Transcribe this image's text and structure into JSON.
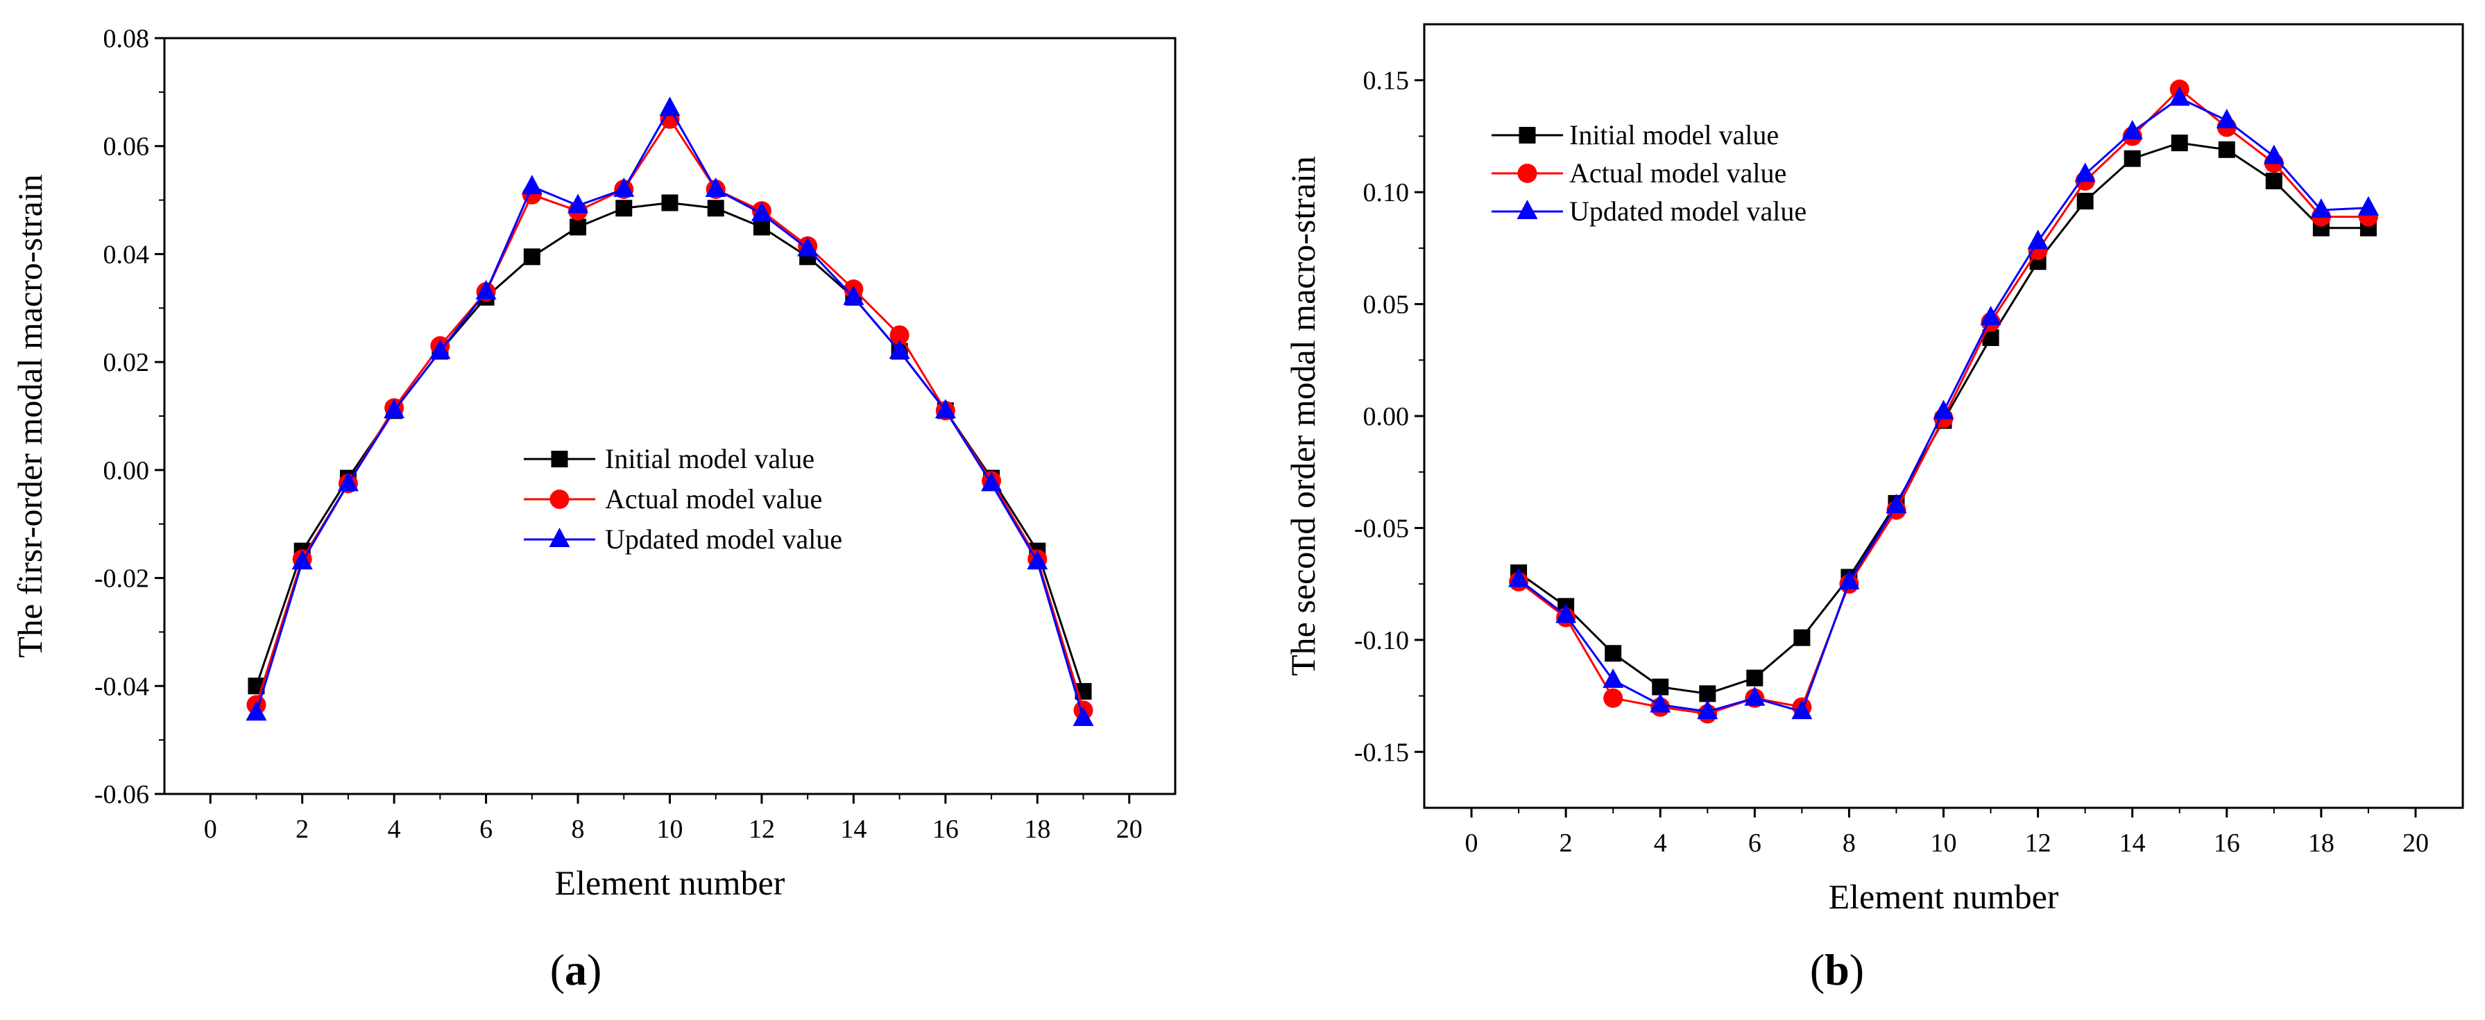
{
  "chart_data": [
    {
      "type": "line",
      "panel": "a",
      "caption": {
        "open": "(",
        "letter": "a",
        "close": ")"
      },
      "title": "",
      "xlabel": "Element number",
      "ylabel": "The firsr-order modal macro-strain",
      "xlim": [
        -1,
        21
      ],
      "ylim": [
        -0.06,
        0.08
      ],
      "xticks": [
        0,
        2,
        4,
        6,
        8,
        10,
        12,
        14,
        16,
        18,
        20
      ],
      "xtick_labels": [
        "0",
        "2",
        "4",
        "6",
        "8",
        "10",
        "12",
        "14",
        "16",
        "18",
        "20"
      ],
      "yticks": [
        -0.06,
        -0.04,
        -0.02,
        0.0,
        0.02,
        0.04,
        0.06,
        0.08
      ],
      "ytick_labels": [
        "-0.06",
        "-0.04",
        "-0.02",
        "0.00",
        "0.02",
        "0.04",
        "0.06",
        "0.08"
      ],
      "legend_position": "center-right",
      "x": [
        1,
        2,
        3,
        4,
        5,
        6,
        7,
        8,
        9,
        10,
        11,
        12,
        13,
        14,
        15,
        16,
        17,
        18,
        19
      ],
      "series": [
        {
          "name": "Initial model value",
          "color": "#000000",
          "marker": "square",
          "values": [
            -0.04,
            -0.015,
            -0.0015,
            0.011,
            0.022,
            0.032,
            0.0395,
            0.045,
            0.0485,
            0.0495,
            0.0485,
            0.045,
            0.0395,
            0.032,
            0.022,
            0.011,
            -0.0015,
            -0.015,
            -0.041
          ]
        },
        {
          "name": "Actual model value",
          "color": "#ff0000",
          "marker": "circle",
          "values": [
            -0.0435,
            -0.0165,
            -0.0025,
            0.0115,
            0.023,
            0.033,
            0.051,
            0.048,
            0.052,
            0.065,
            0.052,
            0.048,
            0.0415,
            0.0335,
            0.025,
            0.011,
            -0.002,
            -0.0165,
            -0.0445
          ]
        },
        {
          "name": "Updated model value",
          "color": "#0000ff",
          "marker": "triangle",
          "values": [
            -0.045,
            -0.017,
            -0.0025,
            0.011,
            0.022,
            0.033,
            0.0525,
            0.049,
            0.052,
            0.067,
            0.052,
            0.0475,
            0.041,
            0.032,
            0.022,
            0.011,
            -0.0025,
            -0.017,
            -0.046
          ]
        }
      ]
    },
    {
      "type": "line",
      "panel": "b",
      "caption": {
        "open": "(",
        "letter": "b",
        "close": ")"
      },
      "title": "",
      "xlabel": "Element number",
      "ylabel": "The second order modal macro-strain",
      "xlim": [
        -1,
        21
      ],
      "ylim": [
        -0.175,
        0.175
      ],
      "xticks": [
        0,
        2,
        4,
        6,
        8,
        10,
        12,
        14,
        16,
        18,
        20
      ],
      "xtick_labels": [
        "0",
        "2",
        "4",
        "6",
        "8",
        "10",
        "12",
        "14",
        "16",
        "18",
        "20"
      ],
      "yticks": [
        -0.15,
        -0.1,
        -0.05,
        0.0,
        0.05,
        0.1,
        0.15
      ],
      "ytick_labels": [
        "-0.15",
        "-0.10",
        "-0.05",
        "0.00",
        "0.05",
        "0.10",
        "0.15"
      ],
      "legend_position": "top-left",
      "x": [
        1,
        2,
        3,
        4,
        5,
        6,
        7,
        8,
        9,
        10,
        11,
        12,
        13,
        14,
        15,
        16,
        17,
        18,
        19
      ],
      "series": [
        {
          "name": "Initial model value",
          "color": "#000000",
          "marker": "square",
          "values": [
            -0.07,
            -0.085,
            -0.106,
            -0.121,
            -0.124,
            -0.117,
            -0.099,
            -0.072,
            -0.039,
            -0.002,
            0.035,
            0.069,
            0.096,
            0.115,
            0.122,
            0.119,
            0.105,
            0.084,
            0.084
          ]
        },
        {
          "name": "Actual model value",
          "color": "#ff0000",
          "marker": "circle",
          "values": [
            -0.074,
            -0.09,
            -0.126,
            -0.13,
            -0.133,
            -0.126,
            -0.13,
            -0.075,
            -0.042,
            -0.001,
            0.042,
            0.074,
            0.105,
            0.125,
            0.146,
            0.129,
            0.113,
            0.089,
            0.089
          ]
        },
        {
          "name": "Updated model value",
          "color": "#0000ff",
          "marker": "triangle",
          "values": [
            -0.073,
            -0.089,
            -0.118,
            -0.129,
            -0.132,
            -0.126,
            -0.132,
            -0.074,
            -0.04,
            0.002,
            0.044,
            0.078,
            0.108,
            0.127,
            0.142,
            0.132,
            0.116,
            0.092,
            0.093
          ]
        }
      ]
    }
  ]
}
